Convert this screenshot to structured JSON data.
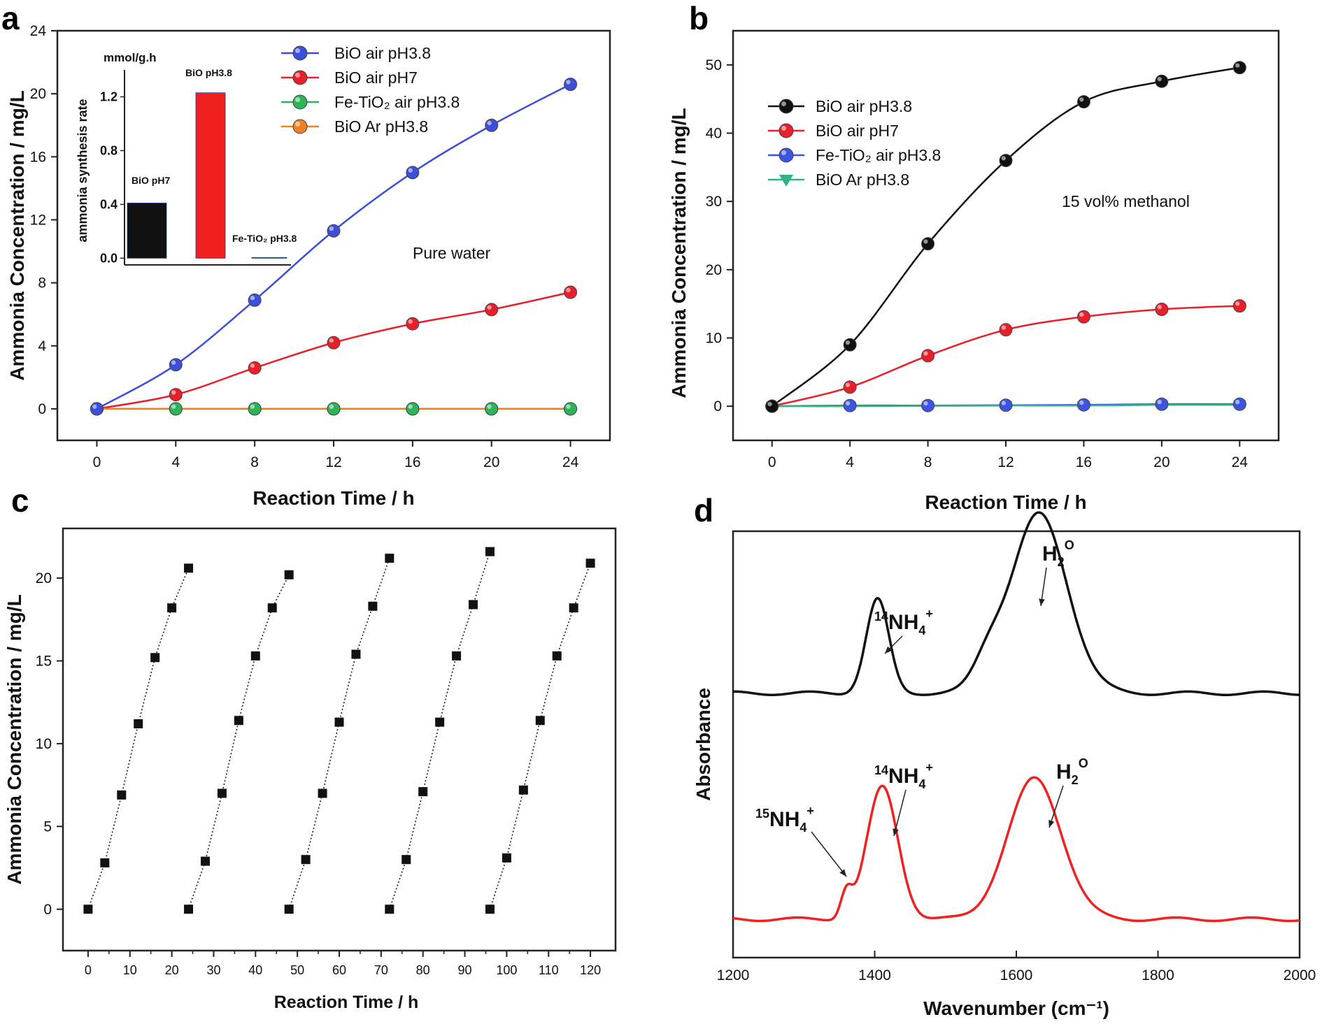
{
  "chart_data": [
    {
      "panel": "a",
      "type": "line",
      "xlabel": "Reaction Time / h",
      "ylabel": "Ammonia Concentration / mg/L",
      "xlim": [
        -2,
        26
      ],
      "ylim": [
        -2,
        24
      ],
      "x_ticks": [
        0,
        4,
        8,
        12,
        16,
        20,
        24
      ],
      "y_ticks": [
        0,
        4,
        8,
        12,
        16,
        20,
        24
      ],
      "annotation": "Pure water",
      "legend_position": "top-right",
      "x": [
        0,
        4,
        8,
        12,
        16,
        20,
        24
      ],
      "series": [
        {
          "name": "BiO air pH3.8",
          "color": "#3b4fd8",
          "values": [
            0,
            2.8,
            6.9,
            11.3,
            15.0,
            18.0,
            20.6
          ]
        },
        {
          "name": "BiO air pH7",
          "color": "#e8202a",
          "values": [
            0,
            0.9,
            2.6,
            4.2,
            5.4,
            6.3,
            7.4
          ]
        },
        {
          "name": "Fe-TiO₂ air pH3.8",
          "color": "#2fb35a",
          "values": [
            0,
            0,
            0,
            0,
            0,
            0,
            0
          ]
        },
        {
          "name": "BiO Ar pH3.8",
          "color": "#f08020",
          "values": [
            0,
            0,
            0,
            0,
            0,
            0,
            0
          ]
        }
      ],
      "inset": {
        "type": "bar",
        "unit": "mmol/g.h",
        "ylabel": "ammonia synthesis rate",
        "ylim": [
          -0.05,
          1.4
        ],
        "y_ticks": [
          "0.0",
          "0.4",
          "0.8",
          "1.2"
        ],
        "categories": [
          "BiO pH7",
          "BiO pH3.8",
          "Fe-TiO₂ pH3.8"
        ],
        "values": [
          0.41,
          1.23,
          0.005
        ],
        "colors": [
          "#111111",
          "#f02020",
          "#2fb35a"
        ]
      }
    },
    {
      "panel": "b",
      "type": "line",
      "xlabel": "Reaction Time / h",
      "ylabel": "Ammonia Concentration / mg/L",
      "xlim": [
        -2,
        26
      ],
      "ylim": [
        -5,
        55
      ],
      "x_ticks": [
        0,
        4,
        8,
        12,
        16,
        20,
        24
      ],
      "y_ticks": [
        0,
        10,
        20,
        30,
        40,
        50
      ],
      "annotation": "15 vol% methanol",
      "legend_position": "top-left",
      "x": [
        0,
        4,
        8,
        12,
        16,
        20,
        24
      ],
      "series": [
        {
          "name": "BiO air pH3.8",
          "color": "#111111",
          "marker": "circle",
          "values": [
            0,
            9.0,
            23.8,
            36.0,
            44.6,
            47.6,
            49.6
          ]
        },
        {
          "name": "BiO air pH7",
          "color": "#e8202a",
          "marker": "circle",
          "values": [
            0,
            2.8,
            7.4,
            11.2,
            13.1,
            14.2,
            14.7
          ]
        },
        {
          "name": "Fe-TiO₂ air pH3.8",
          "color": "#3b55e0",
          "marker": "circle",
          "values": [
            0,
            0.1,
            0.1,
            0.15,
            0.2,
            0.3,
            0.3
          ]
        },
        {
          "name": "BiO Ar pH3.8",
          "color": "#2fb38a",
          "marker": "triangle-down",
          "values": [
            0,
            0,
            0.05,
            0.1,
            0.1,
            0.2,
            0.2
          ]
        }
      ]
    },
    {
      "panel": "c",
      "type": "scatter",
      "xlabel": "Reaction Time / h",
      "ylabel": "Ammonia Concentration / mg/L",
      "xlim": [
        -6,
        126
      ],
      "ylim": [
        -2.5,
        23
      ],
      "x_ticks": [
        0,
        10,
        20,
        30,
        40,
        50,
        60,
        70,
        80,
        90,
        100,
        110,
        120
      ],
      "y_ticks": [
        0,
        5,
        10,
        15,
        20
      ],
      "cycles": [
        {
          "x": [
            0,
            4,
            8,
            12,
            16,
            20,
            24
          ],
          "y": [
            0,
            2.8,
            6.9,
            11.2,
            15.2,
            18.2,
            20.6
          ]
        },
        {
          "x": [
            24,
            28,
            32,
            36,
            40,
            44,
            48
          ],
          "y": [
            0,
            2.9,
            7.0,
            11.4,
            15.3,
            18.2,
            20.2
          ]
        },
        {
          "x": [
            48,
            52,
            56,
            60,
            64,
            68,
            72
          ],
          "y": [
            0,
            3.0,
            7.0,
            11.3,
            15.4,
            18.3,
            21.2
          ]
        },
        {
          "x": [
            72,
            76,
            80,
            84,
            88,
            92,
            96
          ],
          "y": [
            0,
            3.0,
            7.1,
            11.3,
            15.3,
            18.4,
            21.6
          ]
        },
        {
          "x": [
            96,
            100,
            104,
            108,
            112,
            116,
            120
          ],
          "y": [
            0,
            3.1,
            7.2,
            11.4,
            15.3,
            18.2,
            20.9
          ]
        }
      ]
    },
    {
      "panel": "d",
      "type": "line",
      "xlabel": "Wavenumber (cm⁻¹)",
      "ylabel": "Absorbance",
      "xlim": [
        1200,
        2000
      ],
      "x_ticks": [
        1200,
        1400,
        1600,
        1800,
        2000
      ],
      "series": [
        {
          "color": "#111111",
          "baseline": 0.62,
          "peaks": [
            {
              "x": 1404,
              "h": 0.22,
              "w": 16
            },
            {
              "x": 1632,
              "h": 0.42,
              "w": 40
            },
            {
              "x": 1560,
              "h": 0.06,
              "w": 20
            }
          ]
        },
        {
          "color": "#ee2222",
          "baseline": 0.09,
          "peaks": [
            {
              "x": 1360,
              "h": 0.06,
              "w": 8
            },
            {
              "x": 1411,
              "h": 0.31,
              "w": 22
            },
            {
              "x": 1626,
              "h": 0.33,
              "w": 38
            }
          ]
        }
      ],
      "labels": {
        "top_nh4_mass": "14",
        "top_nh4": "NH",
        "top_h2o": "H",
        "bot_n15_mass": "15",
        "bot_nh4_mass": "14",
        "bot_nh4": "NH",
        "bot_h2o": "H",
        "sub4": "4",
        "sub2": "2",
        "h2o_o": "O",
        "plus": "+"
      }
    }
  ],
  "panel_labels": {
    "a": "a",
    "b": "b",
    "c": "c",
    "d": "d"
  },
  "inset_bar_labels": [
    "BiO pH7",
    "BiO pH3.8",
    "Fe-TiO₂ pH3.8"
  ]
}
